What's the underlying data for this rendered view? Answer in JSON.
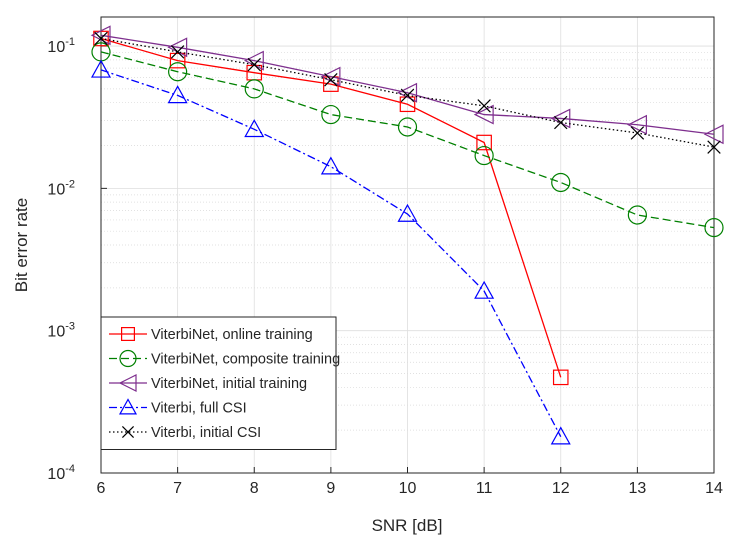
{
  "chart_data": {
    "type": "line",
    "xlabel": "SNR [dB]",
    "ylabel": "Bit error rate",
    "x": [
      6,
      7,
      8,
      9,
      10,
      11,
      12,
      13,
      14
    ],
    "xlim": [
      6,
      14
    ],
    "xticks": [
      6,
      7,
      8,
      9,
      10,
      11,
      12,
      13,
      14
    ],
    "ylim": [
      0.0001,
      0.16
    ],
    "log_y": true,
    "grid": true,
    "minor_grid": true,
    "legend": "lower left",
    "yticks": [
      {
        "value": 0.0001,
        "label": "10",
        "exponent": "-4"
      },
      {
        "value": 0.001,
        "label": "10",
        "exponent": "-3"
      },
      {
        "value": 0.01,
        "label": "10",
        "exponent": "-2"
      },
      {
        "value": 0.1,
        "label": "10",
        "exponent": "-1"
      }
    ],
    "series": [
      {
        "name": "ViterbiNet, online training",
        "color": "#ff0000",
        "marker": "square",
        "dash": "none",
        "values": [
          0.113,
          0.079,
          0.065,
          0.054,
          0.039,
          0.021,
          0.00047,
          null,
          null
        ]
      },
      {
        "name": "ViterbiNet, composite training",
        "color": "#008000",
        "marker": "circle",
        "dash": "8 4",
        "values": [
          0.091,
          0.066,
          0.05,
          0.033,
          0.027,
          0.017,
          0.011,
          0.0065,
          0.0053
        ]
      },
      {
        "name": "ViterbiNet, initial training",
        "color": "#7e2f8e",
        "marker": "triangle-left",
        "dash": "none",
        "values": [
          0.119,
          0.098,
          0.079,
          0.061,
          0.047,
          0.033,
          0.031,
          0.028,
          0.024
        ]
      },
      {
        "name": "Viterbi, full CSI",
        "color": "#0000ff",
        "marker": "triangle-up",
        "dash": "8 3 2 3",
        "values": [
          0.068,
          0.045,
          0.026,
          0.0142,
          0.0066,
          0.0019,
          0.00018,
          null,
          null
        ]
      },
      {
        "name": "Viterbi, initial CSI",
        "color": "#000000",
        "marker": "x",
        "dash": "1.5 2.5",
        "values": [
          0.113,
          0.091,
          0.074,
          0.058,
          0.045,
          0.038,
          0.029,
          0.0245,
          0.0195
        ]
      }
    ]
  }
}
